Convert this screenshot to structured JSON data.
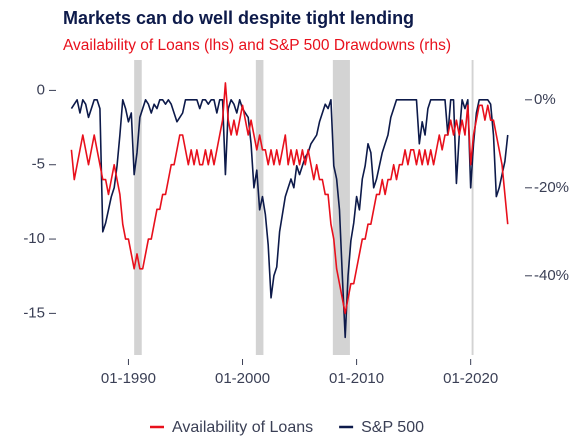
{
  "chart_data": {
    "type": "line",
    "title": "Markets can do well despite tight lending",
    "subtitle": "Availability of Loans (lhs) and S&P 500 Drawdowns (rhs)",
    "x": [
      "1985-01",
      "1985-04",
      "1985-07",
      "1985-10",
      "1986-01",
      "1986-04",
      "1986-07",
      "1986-10",
      "1987-01",
      "1987-04",
      "1987-07",
      "1987-10",
      "1988-01",
      "1988-04",
      "1988-07",
      "1988-10",
      "1989-01",
      "1989-04",
      "1989-07",
      "1989-10",
      "1990-01",
      "1990-04",
      "1990-07",
      "1990-10",
      "1991-01",
      "1991-04",
      "1991-07",
      "1991-10",
      "1992-01",
      "1992-04",
      "1992-07",
      "1992-10",
      "1993-01",
      "1993-04",
      "1993-07",
      "1993-10",
      "1994-01",
      "1994-04",
      "1994-07",
      "1994-10",
      "1995-01",
      "1995-04",
      "1995-07",
      "1995-10",
      "1996-01",
      "1996-04",
      "1996-07",
      "1996-10",
      "1997-01",
      "1997-04",
      "1997-07",
      "1997-10",
      "1998-01",
      "1998-04",
      "1998-07",
      "1998-10",
      "1999-01",
      "1999-04",
      "1999-07",
      "1999-10",
      "2000-01",
      "2000-04",
      "2000-07",
      "2000-10",
      "2001-01",
      "2001-04",
      "2001-07",
      "2001-10",
      "2002-01",
      "2002-04",
      "2002-07",
      "2002-10",
      "2003-01",
      "2003-04",
      "2003-07",
      "2003-10",
      "2004-01",
      "2004-04",
      "2004-07",
      "2004-10",
      "2005-01",
      "2005-04",
      "2005-07",
      "2005-10",
      "2006-01",
      "2006-04",
      "2006-07",
      "2006-10",
      "2007-01",
      "2007-04",
      "2007-07",
      "2007-10",
      "2008-01",
      "2008-04",
      "2008-07",
      "2008-10",
      "2009-01",
      "2009-04",
      "2009-07",
      "2009-10",
      "2010-01",
      "2010-04",
      "2010-07",
      "2010-10",
      "2011-01",
      "2011-04",
      "2011-07",
      "2011-10",
      "2012-01",
      "2012-04",
      "2012-07",
      "2012-10",
      "2013-01",
      "2013-04",
      "2013-07",
      "2013-10",
      "2014-01",
      "2014-04",
      "2014-07",
      "2014-10",
      "2015-01",
      "2015-04",
      "2015-07",
      "2015-10",
      "2016-01",
      "2016-04",
      "2016-07",
      "2016-10",
      "2017-01",
      "2017-04",
      "2017-07",
      "2017-10",
      "2018-01",
      "2018-04",
      "2018-07",
      "2018-10",
      "2019-01",
      "2019-04",
      "2019-07",
      "2019-10",
      "2020-01",
      "2020-04",
      "2020-07",
      "2020-10",
      "2021-01",
      "2021-04",
      "2021-07",
      "2021-10",
      "2022-01",
      "2022-04",
      "2022-07",
      "2022-10",
      "2023-01",
      "2023-04"
    ],
    "series": [
      {
        "name": "Availability of Loans",
        "color": "#e8101c",
        "axis": "y",
        "values": [
          -4,
          -6,
          -5,
          -4,
          -3,
          -4,
          -5,
          -4,
          -3,
          -4,
          -5,
          -6,
          -6,
          -7,
          -6,
          -5,
          -6,
          -7,
          -9,
          -10,
          -10,
          -11,
          -12,
          -11,
          -12,
          -12,
          -11,
          -10,
          -10,
          -9,
          -8,
          -8,
          -7,
          -7,
          -6,
          -5,
          -5,
          -4,
          -3,
          -3,
          -4,
          -5,
          -4,
          -5,
          -4,
          -5,
          -5,
          -4,
          -5,
          -4,
          -5,
          -4,
          -3,
          -2,
          0.5,
          -2,
          -3,
          -2,
          -3,
          -2,
          -1,
          -2,
          -3,
          -2,
          -3,
          -4,
          -3,
          -4,
          -4,
          -5,
          -4,
          -5,
          -4,
          -5,
          -4,
          -3,
          -5,
          -4,
          -5,
          -4,
          -5,
          -4,
          -5,
          -4,
          -5,
          -6,
          -5,
          -6,
          -6,
          -7,
          -7,
          -9,
          -10,
          -12,
          -13,
          -14,
          -15,
          -14,
          -13,
          -13,
          -12,
          -11,
          -10,
          -10,
          -9,
          -9,
          -8,
          -7,
          -7,
          -6,
          -7,
          -6,
          -6,
          -5,
          -6,
          -5,
          -5,
          -4,
          -5,
          -4,
          -4,
          -5,
          -4,
          -5,
          -4,
          -5,
          -4,
          -5,
          -4,
          -3,
          -4,
          -3,
          -3,
          -2,
          -3,
          -2,
          -3,
          -2,
          -3,
          -1,
          -5,
          -3,
          -2,
          -1,
          -1,
          -2,
          -1,
          -2,
          -2,
          -3,
          -4,
          -5,
          -7,
          -9
        ]
      },
      {
        "name": "S&P 500",
        "color": "#0d1a4a",
        "axis": "y2",
        "values": [
          -2,
          -1,
          0,
          -3,
          0,
          -1,
          -4,
          -2,
          0,
          0,
          -2,
          -30,
          -28,
          -25,
          -22,
          -20,
          -15,
          -8,
          0,
          -2,
          -5,
          -3,
          -17,
          -12,
          -4,
          -2,
          0,
          -1,
          -3,
          -1,
          -2,
          0,
          0,
          -1,
          0,
          -1,
          -3,
          -5,
          -4,
          -3,
          0,
          0,
          0,
          0,
          0,
          -2,
          0,
          0,
          -1,
          0,
          0,
          -3,
          0,
          0,
          -17,
          -2,
          0,
          -1,
          -3,
          0,
          -2,
          -3,
          -4,
          -10,
          -20,
          -16,
          -25,
          -22,
          -26,
          -33,
          -45,
          -40,
          -38,
          -30,
          -26,
          -22,
          -20,
          -18,
          -20,
          -15,
          -17,
          -15,
          -13,
          -12,
          -10,
          -9,
          -8,
          -5,
          -3,
          -1,
          -2,
          0,
          -15,
          -18,
          -25,
          -40,
          -54,
          -40,
          -32,
          -28,
          -22,
          -25,
          -18,
          -15,
          -10,
          -12,
          -20,
          -18,
          -15,
          -12,
          -10,
          -8,
          -4,
          -2,
          0,
          0,
          0,
          0,
          0,
          0,
          0,
          0,
          -10,
          -5,
          -8,
          -2,
          0,
          0,
          0,
          0,
          0,
          0,
          -8,
          0,
          0,
          -19,
          -8,
          0,
          -2,
          0,
          -20,
          -10,
          -3,
          0,
          0,
          0,
          0,
          -1,
          -8,
          -22,
          -20,
          -17,
          -14,
          -8
        ]
      }
    ],
    "recessions": [
      [
        "1990-07",
        "1991-03"
      ],
      [
        "2001-03",
        "2001-11"
      ],
      [
        "2007-12",
        "2009-06"
      ],
      [
        "2020-02",
        "2020-04"
      ]
    ],
    "recession_color": "#d3d3d3",
    "xlim": [
      "1984-01",
      "2024-07"
    ],
    "xticks": [
      {
        "value": "1990-01",
        "label": "01-1990"
      },
      {
        "value": "2000-01",
        "label": "01-2000"
      },
      {
        "value": "2010-01",
        "label": "01-2010"
      },
      {
        "value": "2020-01",
        "label": "01-2020"
      }
    ],
    "ylim": [
      -17.8,
      0.7
    ],
    "yticks": [
      0,
      -5,
      -10,
      -15
    ],
    "y2lim": [
      -58,
      4.5
    ],
    "y2ticks": [
      {
        "value": 0,
        "label": "0%"
      },
      {
        "value": -20,
        "label": "-20%"
      },
      {
        "value": -40,
        "label": "-40%"
      }
    ],
    "legend": "bottom",
    "grid": false
  }
}
